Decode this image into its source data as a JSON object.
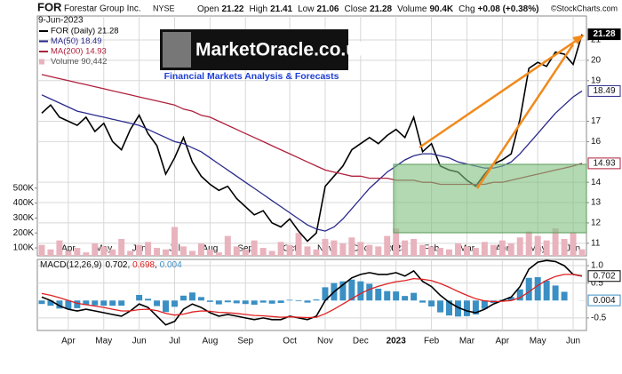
{
  "header": {
    "symbol": "FOR",
    "name": "Forestar Group Inc.",
    "exchange": "NYSE",
    "date": "9-Jun-2023",
    "stats": [
      {
        "label": "Open",
        "value": "21.22"
      },
      {
        "label": "High",
        "value": "21.41"
      },
      {
        "label": "Low",
        "value": "21.06"
      },
      {
        "label": "Close",
        "value": "21.28"
      },
      {
        "label": "Volume",
        "value": "90.4K"
      },
      {
        "label": "Chg",
        "value": "+0.08 (+0.38%)"
      }
    ],
    "credit": "©StockCharts.com"
  },
  "watermark": {
    "title": "MarketOracle.co.uk",
    "subtitle": "Financial Markets Analysis & Forecasts"
  },
  "chart_data": [
    {
      "type": "line",
      "categories": [
        null,
        null,
        null,
        "Apr",
        null,
        null,
        null,
        "May",
        null,
        null,
        null,
        "Jun",
        null,
        null,
        null,
        "Jul",
        null,
        null,
        null,
        "Aug",
        null,
        null,
        null,
        "Sep",
        null,
        null,
        null,
        null,
        "Oct",
        null,
        null,
        null,
        "Nov",
        null,
        null,
        null,
        "Dec",
        null,
        null,
        null,
        "2023",
        null,
        null,
        null,
        "Feb",
        null,
        null,
        null,
        "Mar",
        null,
        null,
        null,
        "Apr",
        null,
        null,
        null,
        "May",
        null,
        null,
        null,
        "Jun",
        null
      ],
      "series": [
        {
          "name": "FOR (Daily) 21.28",
          "color": "#000000",
          "last_label": "21.28",
          "values": [
            17.4,
            17.8,
            17.2,
            17.0,
            16.8,
            17.2,
            16.5,
            16.9,
            16.0,
            15.6,
            16.6,
            17.3,
            16.4,
            15.8,
            14.4,
            15.2,
            16.2,
            15.0,
            14.3,
            13.9,
            13.6,
            13.8,
            13.2,
            12.8,
            12.4,
            12.6,
            12.0,
            11.8,
            12.2,
            11.6,
            11.1,
            11.5,
            13.8,
            14.3,
            14.8,
            15.6,
            15.9,
            16.2,
            15.9,
            16.3,
            16.6,
            16.2,
            17.2,
            15.5,
            15.9,
            14.8,
            14.6,
            14.5,
            14.1,
            13.8,
            14.4,
            14.9,
            15.1,
            15.4,
            17.1,
            19.6,
            19.9,
            19.7,
            20.4,
            20.3,
            19.8,
            21.28
          ]
        },
        {
          "name": "MA(50) 18.49",
          "color": "#2a2a8c",
          "last_label": "18.49",
          "values": [
            18.3,
            18.1,
            17.9,
            17.7,
            17.5,
            17.4,
            17.3,
            17.2,
            17.1,
            17.0,
            16.9,
            16.8,
            16.6,
            16.4,
            16.2,
            16.0,
            15.9,
            15.7,
            15.5,
            15.2,
            14.9,
            14.6,
            14.3,
            14.0,
            13.7,
            13.4,
            13.1,
            12.8,
            12.5,
            12.2,
            11.9,
            11.7,
            11.6,
            11.8,
            12.2,
            12.7,
            13.2,
            13.7,
            14.1,
            14.5,
            14.8,
            15.1,
            15.3,
            15.4,
            15.4,
            15.3,
            15.2,
            15.0,
            14.9,
            14.8,
            14.7,
            14.7,
            14.8,
            15.0,
            15.4,
            15.9,
            16.4,
            16.9,
            17.4,
            17.8,
            18.2,
            18.49
          ]
        },
        {
          "name": "MA(200) 14.93",
          "color": "#b0203c",
          "last_label": "14.93",
          "values": [
            19.3,
            19.2,
            19.1,
            19.0,
            18.9,
            18.8,
            18.7,
            18.6,
            18.5,
            18.4,
            18.3,
            18.2,
            18.1,
            18.0,
            17.9,
            17.8,
            17.6,
            17.5,
            17.3,
            17.2,
            17.0,
            16.8,
            16.6,
            16.4,
            16.2,
            16.0,
            15.8,
            15.6,
            15.4,
            15.2,
            15.0,
            14.8,
            14.6,
            14.5,
            14.4,
            14.3,
            14.3,
            14.2,
            14.2,
            14.2,
            14.1,
            14.1,
            14.1,
            14.0,
            14.0,
            13.9,
            13.9,
            13.9,
            13.9,
            13.9,
            13.9,
            14.0,
            14.0,
            14.1,
            14.2,
            14.3,
            14.4,
            14.5,
            14.6,
            14.7,
            14.8,
            14.93
          ]
        },
        {
          "name": "Volume 90,442",
          "type": "bar",
          "axis": "y2",
          "color": "#e9b3bd",
          "values": [
            120000,
            90000,
            150000,
            80000,
            100000,
            70000,
            130000,
            110000,
            90000,
            160000,
            80000,
            120000,
            140000,
            100000,
            90000,
            240000,
            110000,
            80000,
            130000,
            90000,
            70000,
            180000,
            110000,
            90000,
            150000,
            100000,
            80000,
            140000,
            120000,
            200000,
            110000,
            90000,
            160000,
            150000,
            130000,
            170000,
            140000,
            120000,
            110000,
            180000,
            230000,
            150000,
            160000,
            120000,
            110000,
            100000,
            90000,
            130000,
            110000,
            100000,
            140000,
            120000,
            150000,
            130000,
            170000,
            210000,
            180000,
            150000,
            230000,
            160000,
            200000,
            90442
          ]
        }
      ],
      "ylim": [
        10.38,
        22.18
      ],
      "yticks": [
        11,
        12,
        13,
        14,
        16,
        17,
        19,
        20,
        21
      ],
      "y2lim": [
        47000,
        1650000
      ],
      "y2ticks": [
        {
          "value": 100000,
          "label": "100K"
        },
        {
          "value": 200000,
          "label": "200K"
        },
        {
          "value": 300000,
          "label": "300K"
        },
        {
          "value": 400000,
          "label": "400K"
        },
        {
          "value": 500000,
          "label": "500K"
        }
      ],
      "grid": true
    },
    {
      "type": "line",
      "categories": [
        null,
        null,
        null,
        "Apr",
        null,
        null,
        null,
        "May",
        null,
        null,
        null,
        "Jun",
        null,
        null,
        null,
        "Jul",
        null,
        null,
        null,
        "Aug",
        null,
        null,
        null,
        "Sep",
        null,
        null,
        null,
        null,
        "Oct",
        null,
        null,
        null,
        "Nov",
        null,
        null,
        null,
        "Dec",
        null,
        null,
        null,
        "2023",
        null,
        null,
        null,
        "Feb",
        null,
        null,
        null,
        "Mar",
        null,
        null,
        null,
        "Apr",
        null,
        null,
        null,
        "May",
        null,
        null,
        null,
        "Jun",
        null
      ],
      "series": [
        {
          "name": "MACD(12,26,9)",
          "color": "#000000",
          "legend_value": "0.702",
          "values": [
            0.1,
            0.0,
            -0.15,
            -0.25,
            -0.3,
            -0.25,
            -0.3,
            -0.35,
            -0.4,
            -0.45,
            -0.3,
            -0.1,
            -0.2,
            -0.45,
            -0.7,
            -0.6,
            -0.25,
            -0.1,
            -0.2,
            -0.35,
            -0.45,
            -0.4,
            -0.45,
            -0.5,
            -0.55,
            -0.5,
            -0.55,
            -0.55,
            -0.45,
            -0.5,
            -0.55,
            -0.45,
            0.0,
            0.25,
            0.45,
            0.65,
            0.75,
            0.8,
            0.75,
            0.75,
            0.8,
            0.7,
            0.85,
            0.55,
            0.4,
            0.15,
            -0.05,
            -0.2,
            -0.3,
            -0.35,
            -0.25,
            -0.1,
            0.0,
            0.1,
            0.4,
            0.9,
            1.1,
            1.15,
            1.12,
            1.0,
            0.75,
            0.702
          ]
        },
        {
          "color": "#e02020",
          "legend_value": "0.698",
          "values": [
            0.2,
            0.15,
            0.08,
            0.0,
            -0.08,
            -0.12,
            -0.16,
            -0.2,
            -0.25,
            -0.3,
            -0.3,
            -0.26,
            -0.25,
            -0.29,
            -0.37,
            -0.42,
            -0.39,
            -0.33,
            -0.3,
            -0.31,
            -0.34,
            -0.35,
            -0.37,
            -0.4,
            -0.43,
            -0.44,
            -0.46,
            -0.48,
            -0.47,
            -0.48,
            -0.49,
            -0.48,
            -0.38,
            -0.25,
            -0.1,
            0.05,
            0.2,
            0.32,
            0.41,
            0.48,
            0.54,
            0.57,
            0.63,
            0.61,
            0.57,
            0.49,
            0.38,
            0.26,
            0.15,
            0.05,
            -0.01,
            -0.03,
            -0.02,
            0.0,
            0.08,
            0.25,
            0.43,
            0.58,
            0.69,
            0.75,
            0.75,
            0.698
          ]
        },
        {
          "type": "bar",
          "color": "#3a8fc4",
          "legend_value": "0.004",
          "values": [
            -0.1,
            -0.15,
            -0.23,
            -0.25,
            -0.22,
            -0.13,
            -0.14,
            -0.15,
            -0.15,
            -0.15,
            0.0,
            0.16,
            0.05,
            -0.16,
            -0.33,
            -0.18,
            0.14,
            0.23,
            0.1,
            -0.04,
            -0.11,
            -0.05,
            -0.08,
            -0.1,
            -0.12,
            -0.06,
            -0.09,
            -0.07,
            0.02,
            -0.02,
            -0.06,
            0.03,
            0.38,
            0.5,
            0.55,
            0.6,
            0.55,
            0.48,
            0.34,
            0.27,
            0.26,
            0.13,
            0.22,
            -0.06,
            -0.17,
            -0.34,
            -0.43,
            -0.46,
            -0.45,
            -0.4,
            -0.24,
            -0.07,
            0.02,
            0.1,
            0.32,
            0.65,
            0.67,
            0.57,
            0.43,
            0.25,
            0.0,
            0.004
          ]
        }
      ],
      "ylim": [
        -0.86,
        1.18
      ],
      "yticks": [
        -0.5,
        0.5,
        {
          "value": 1.0,
          "label": "1.0"
        }
      ],
      "grid": true
    }
  ]
}
